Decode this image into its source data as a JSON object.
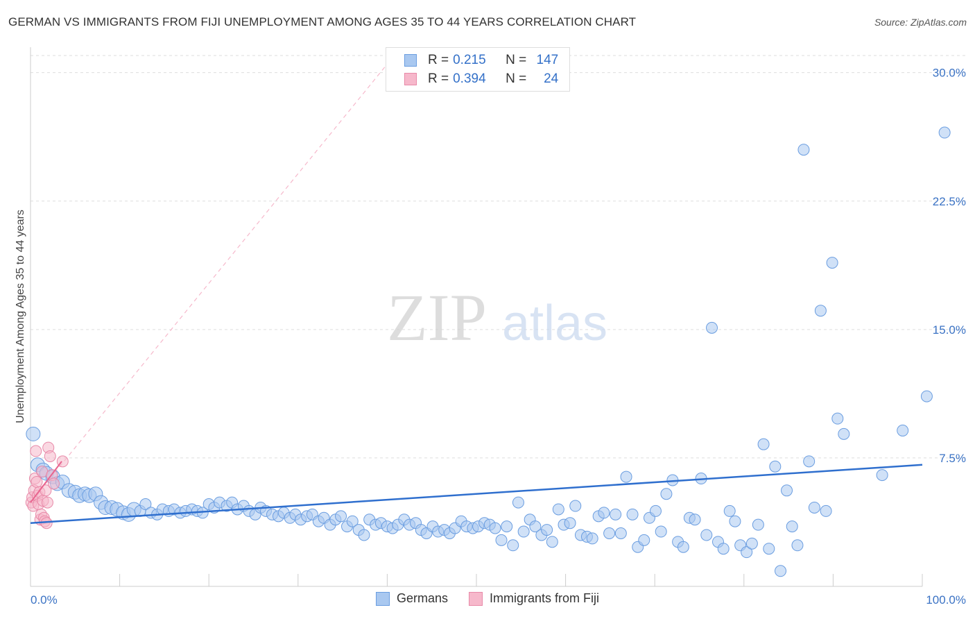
{
  "title": "GERMAN VS IMMIGRANTS FROM FIJI UNEMPLOYMENT AMONG AGES 35 TO 44 YEARS CORRELATION CHART",
  "source": "Source: ZipAtlas.com",
  "watermark": {
    "zip": "ZIP",
    "atlas": "atlas"
  },
  "colors": {
    "german_fill": "#a9c8f0",
    "german_stroke": "#6a9de0",
    "german_line": "#2f6fce",
    "fiji_fill": "#f6b8cb",
    "fiji_stroke": "#e889a8",
    "fiji_line": "#e8648e",
    "axis_label": "#3a72c4",
    "grid": "#dddddd"
  },
  "legend": {
    "german": {
      "r_label": "R =",
      "r_value": "0.215",
      "n_label": "N =",
      "n_value": "147"
    },
    "fiji": {
      "r_label": "R =",
      "r_value": "0.394",
      "n_label": "N =",
      "n_value": "24"
    }
  },
  "bottom_legend": {
    "german": "Germans",
    "fiji": "Immigrants from Fiji"
  },
  "chart_data": {
    "type": "scatter",
    "title": "GERMAN VS IMMIGRANTS FROM FIJI UNEMPLOYMENT AMONG AGES 35 TO 44 YEARS CORRELATION CHART",
    "xlabel": "",
    "ylabel": "Unemployment Among Ages 35 to 44 years",
    "xlim": [
      0,
      100
    ],
    "ylim": [
      0,
      31
    ],
    "x_tick_labels": [
      "0.0%",
      "100.0%"
    ],
    "y_ticks": [
      7.5,
      15.0,
      22.5,
      30.0
    ],
    "y_tick_labels": [
      "7.5%",
      "15.0%",
      "22.5%",
      "30.0%"
    ],
    "grid": true,
    "series": [
      {
        "name": "Germans",
        "r": 0.215,
        "n": 147,
        "trend": {
          "x": [
            0,
            100
          ],
          "y": [
            3.7,
            7.1
          ]
        },
        "points": [
          [
            0.3,
            8.9
          ],
          [
            0.8,
            7.1
          ],
          [
            1.4,
            6.8
          ],
          [
            1.8,
            6.6
          ],
          [
            2.5,
            6.4
          ],
          [
            3.0,
            6.0
          ],
          [
            3.6,
            6.1
          ],
          [
            4.3,
            5.6
          ],
          [
            5.0,
            5.5
          ],
          [
            5.5,
            5.3
          ],
          [
            6.1,
            5.4
          ],
          [
            6.6,
            5.3
          ],
          [
            7.3,
            5.4
          ],
          [
            7.9,
            4.9
          ],
          [
            8.4,
            4.6
          ],
          [
            9.1,
            4.6
          ],
          [
            9.7,
            4.5
          ],
          [
            10.4,
            4.3
          ],
          [
            11.0,
            4.2
          ],
          [
            11.6,
            4.5
          ],
          [
            12.3,
            4.4
          ],
          [
            12.9,
            4.8
          ],
          [
            13.5,
            4.3
          ],
          [
            14.2,
            4.2
          ],
          [
            14.8,
            4.5
          ],
          [
            15.5,
            4.4
          ],
          [
            16.1,
            4.5
          ],
          [
            16.8,
            4.3
          ],
          [
            17.4,
            4.4
          ],
          [
            18.1,
            4.5
          ],
          [
            18.7,
            4.4
          ],
          [
            19.3,
            4.3
          ],
          [
            20.0,
            4.8
          ],
          [
            20.6,
            4.6
          ],
          [
            21.2,
            4.9
          ],
          [
            22.0,
            4.7
          ],
          [
            22.6,
            4.9
          ],
          [
            23.2,
            4.5
          ],
          [
            23.9,
            4.7
          ],
          [
            24.5,
            4.4
          ],
          [
            25.2,
            4.2
          ],
          [
            25.8,
            4.6
          ],
          [
            26.4,
            4.4
          ],
          [
            27.1,
            4.2
          ],
          [
            27.8,
            4.1
          ],
          [
            28.4,
            4.3
          ],
          [
            29.1,
            4.0
          ],
          [
            29.7,
            4.2
          ],
          [
            30.3,
            3.9
          ],
          [
            31.0,
            4.1
          ],
          [
            31.6,
            4.2
          ],
          [
            32.3,
            3.8
          ],
          [
            32.9,
            4.0
          ],
          [
            33.6,
            3.6
          ],
          [
            34.2,
            3.9
          ],
          [
            34.8,
            4.1
          ],
          [
            35.5,
            3.5
          ],
          [
            36.1,
            3.8
          ],
          [
            36.8,
            3.3
          ],
          [
            37.4,
            3.0
          ],
          [
            38.0,
            3.9
          ],
          [
            38.7,
            3.6
          ],
          [
            39.3,
            3.7
          ],
          [
            40.0,
            3.5
          ],
          [
            40.6,
            3.4
          ],
          [
            41.2,
            3.6
          ],
          [
            41.9,
            3.9
          ],
          [
            42.5,
            3.6
          ],
          [
            43.2,
            3.7
          ],
          [
            43.8,
            3.3
          ],
          [
            44.4,
            3.1
          ],
          [
            45.1,
            3.5
          ],
          [
            45.7,
            3.2
          ],
          [
            46.4,
            3.3
          ],
          [
            47.0,
            3.1
          ],
          [
            47.6,
            3.4
          ],
          [
            48.3,
            3.8
          ],
          [
            48.9,
            3.5
          ],
          [
            49.6,
            3.4
          ],
          [
            50.2,
            3.5
          ],
          [
            50.9,
            3.7
          ],
          [
            51.5,
            3.6
          ],
          [
            52.1,
            3.4
          ],
          [
            52.8,
            2.7
          ],
          [
            53.4,
            3.5
          ],
          [
            54.1,
            2.4
          ],
          [
            54.7,
            4.9
          ],
          [
            55.3,
            3.2
          ],
          [
            56.0,
            3.9
          ],
          [
            56.6,
            3.5
          ],
          [
            57.3,
            3.0
          ],
          [
            57.9,
            3.3
          ],
          [
            58.5,
            2.6
          ],
          [
            59.2,
            4.5
          ],
          [
            59.8,
            3.6
          ],
          [
            60.5,
            3.7
          ],
          [
            61.1,
            4.7
          ],
          [
            61.7,
            3.0
          ],
          [
            62.4,
            2.9
          ],
          [
            63.0,
            2.8
          ],
          [
            63.7,
            4.1
          ],
          [
            64.3,
            4.3
          ],
          [
            64.9,
            3.1
          ],
          [
            65.6,
            4.2
          ],
          [
            66.2,
            3.1
          ],
          [
            66.8,
            6.4
          ],
          [
            67.5,
            4.2
          ],
          [
            68.1,
            2.3
          ],
          [
            68.8,
            2.7
          ],
          [
            69.4,
            4.0
          ],
          [
            70.1,
            4.4
          ],
          [
            70.7,
            3.2
          ],
          [
            71.3,
            5.4
          ],
          [
            72.0,
            6.2
          ],
          [
            72.6,
            2.6
          ],
          [
            73.2,
            2.3
          ],
          [
            73.9,
            4.0
          ],
          [
            74.5,
            3.9
          ],
          [
            75.2,
            6.3
          ],
          [
            75.8,
            3.0
          ],
          [
            76.4,
            15.1
          ],
          [
            77.1,
            2.6
          ],
          [
            77.7,
            2.2
          ],
          [
            78.4,
            4.4
          ],
          [
            79.0,
            3.8
          ],
          [
            79.6,
            2.4
          ],
          [
            80.3,
            2.0
          ],
          [
            80.9,
            2.5
          ],
          [
            81.6,
            3.6
          ],
          [
            82.2,
            8.3
          ],
          [
            82.8,
            2.2
          ],
          [
            83.5,
            7.0
          ],
          [
            84.1,
            0.9
          ],
          [
            84.8,
            5.6
          ],
          [
            85.4,
            3.5
          ],
          [
            86.0,
            2.4
          ],
          [
            86.7,
            25.5
          ],
          [
            87.3,
            7.3
          ],
          [
            87.9,
            4.6
          ],
          [
            88.6,
            16.1
          ],
          [
            89.2,
            4.4
          ],
          [
            89.9,
            18.9
          ],
          [
            90.5,
            9.8
          ],
          [
            91.2,
            8.9
          ],
          [
            95.5,
            6.5
          ],
          [
            97.8,
            9.1
          ],
          [
            100.5,
            11.1
          ],
          [
            102.5,
            26.5
          ]
        ]
      },
      {
        "name": "Immigrants from Fiji",
        "r": 0.394,
        "n": 24,
        "trend": {
          "x": [
            0,
            3.5
          ],
          "y": [
            4.9,
            7.3
          ],
          "extended": {
            "x": [
              0,
              40
            ],
            "y": [
              4.9,
              30.5
            ]
          }
        },
        "points": [
          [
            0.1,
            4.9
          ],
          [
            0.2,
            5.2
          ],
          [
            0.3,
            4.7
          ],
          [
            0.4,
            5.6
          ],
          [
            0.5,
            6.3
          ],
          [
            0.6,
            7.9
          ],
          [
            0.7,
            6.1
          ],
          [
            0.8,
            5.3
          ],
          [
            0.9,
            4.8
          ],
          [
            1.0,
            5.5
          ],
          [
            1.1,
            3.9
          ],
          [
            1.2,
            4.2
          ],
          [
            1.3,
            6.7
          ],
          [
            1.4,
            5.0
          ],
          [
            1.5,
            4.0
          ],
          [
            1.6,
            3.8
          ],
          [
            1.7,
            5.6
          ],
          [
            1.8,
            3.7
          ],
          [
            2.0,
            8.1
          ],
          [
            2.2,
            7.6
          ],
          [
            2.4,
            6.5
          ],
          [
            2.6,
            6.0
          ],
          [
            1.9,
            4.9
          ],
          [
            3.6,
            7.3
          ]
        ]
      }
    ]
  }
}
